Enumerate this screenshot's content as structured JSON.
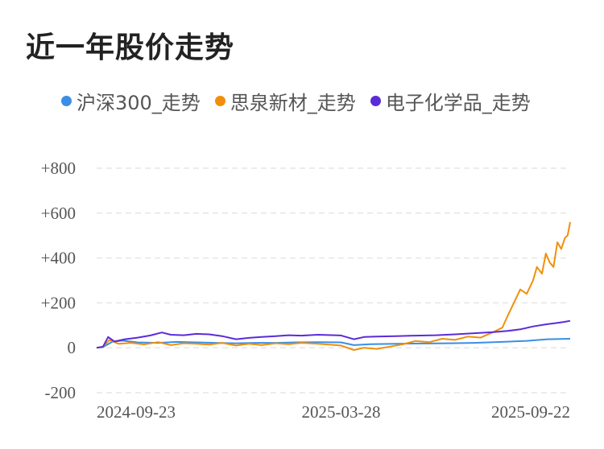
{
  "title": "近一年股价走势",
  "chart_data": {
    "type": "line",
    "title": "近一年股价走势",
    "xlabel": "",
    "ylabel": "",
    "ylim": [
      -200,
      800
    ],
    "y_ticks": [
      "+800",
      "+600",
      "+400",
      "+200",
      "0",
      "-200"
    ],
    "y_tick_values": [
      800,
      600,
      400,
      200,
      0,
      -200
    ],
    "x_ticks": [
      "2024-09-23",
      "2025-03-28",
      "2025-09-22"
    ],
    "x_range": [
      "2024-09-18",
      "2025-09-23"
    ],
    "grid": true,
    "legend_position": "top",
    "series": [
      {
        "name": "沪深300_走势",
        "color": "#3a8ee6",
        "points": [
          [
            "2024-09-18",
            0
          ],
          [
            "2024-09-23",
            3
          ],
          [
            "2024-09-30",
            26
          ],
          [
            "2024-10-08",
            32
          ],
          [
            "2024-10-20",
            24
          ],
          [
            "2024-11-05",
            22
          ],
          [
            "2024-11-20",
            26
          ],
          [
            "2024-12-05",
            24
          ],
          [
            "2024-12-20",
            22
          ],
          [
            "2025-01-05",
            20
          ],
          [
            "2025-01-20",
            22
          ],
          [
            "2025-02-05",
            22
          ],
          [
            "2025-02-20",
            24
          ],
          [
            "2025-03-10",
            25
          ],
          [
            "2025-03-28",
            24
          ],
          [
            "2025-04-07",
            12
          ],
          [
            "2025-04-20",
            16
          ],
          [
            "2025-05-10",
            18
          ],
          [
            "2025-06-01",
            19
          ],
          [
            "2025-06-20",
            20
          ],
          [
            "2025-07-10",
            22
          ],
          [
            "2025-08-01",
            26
          ],
          [
            "2025-08-20",
            31
          ],
          [
            "2025-09-05",
            38
          ],
          [
            "2025-09-23",
            40
          ]
        ]
      },
      {
        "name": "思泉新材_走势",
        "color": "#f0900a",
        "points": [
          [
            "2024-09-18",
            0
          ],
          [
            "2024-09-23",
            5
          ],
          [
            "2024-09-28",
            35
          ],
          [
            "2024-10-05",
            18
          ],
          [
            "2024-10-15",
            22
          ],
          [
            "2024-10-25",
            15
          ],
          [
            "2024-11-05",
            25
          ],
          [
            "2024-11-15",
            12
          ],
          [
            "2024-11-25",
            20
          ],
          [
            "2024-12-05",
            18
          ],
          [
            "2024-12-15",
            14
          ],
          [
            "2024-12-25",
            22
          ],
          [
            "2025-01-05",
            10
          ],
          [
            "2025-01-15",
            18
          ],
          [
            "2025-01-25",
            12
          ],
          [
            "2025-02-05",
            20
          ],
          [
            "2025-02-15",
            16
          ],
          [
            "2025-02-25",
            22
          ],
          [
            "2025-03-10",
            18
          ],
          [
            "2025-03-28",
            10
          ],
          [
            "2025-04-07",
            -10
          ],
          [
            "2025-04-15",
            0
          ],
          [
            "2025-04-25",
            -5
          ],
          [
            "2025-05-05",
            5
          ],
          [
            "2025-05-15",
            15
          ],
          [
            "2025-05-25",
            30
          ],
          [
            "2025-06-05",
            25
          ],
          [
            "2025-06-15",
            40
          ],
          [
            "2025-06-25",
            35
          ],
          [
            "2025-07-05",
            50
          ],
          [
            "2025-07-15",
            45
          ],
          [
            "2025-07-25",
            70
          ],
          [
            "2025-08-01",
            90
          ],
          [
            "2025-08-05",
            140
          ],
          [
            "2025-08-10",
            200
          ],
          [
            "2025-08-15",
            260
          ],
          [
            "2025-08-20",
            240
          ],
          [
            "2025-08-25",
            300
          ],
          [
            "2025-08-28",
            360
          ],
          [
            "2025-09-01",
            330
          ],
          [
            "2025-09-04",
            420
          ],
          [
            "2025-09-07",
            380
          ],
          [
            "2025-09-10",
            360
          ],
          [
            "2025-09-13",
            470
          ],
          [
            "2025-09-16",
            440
          ],
          [
            "2025-09-19",
            490
          ],
          [
            "2025-09-21",
            500
          ],
          [
            "2025-09-23",
            560
          ]
        ]
      },
      {
        "name": "电子化学品_走势",
        "color": "#5b2bd8",
        "points": [
          [
            "2024-09-18",
            0
          ],
          [
            "2024-09-23",
            5
          ],
          [
            "2024-09-27",
            48
          ],
          [
            "2024-10-02",
            28
          ],
          [
            "2024-10-10",
            38
          ],
          [
            "2024-10-20",
            45
          ],
          [
            "2024-10-30",
            55
          ],
          [
            "2024-11-08",
            68
          ],
          [
            "2024-11-15",
            58
          ],
          [
            "2024-11-25",
            56
          ],
          [
            "2024-12-05",
            62
          ],
          [
            "2024-12-15",
            60
          ],
          [
            "2024-12-25",
            52
          ],
          [
            "2025-01-05",
            38
          ],
          [
            "2025-01-15",
            44
          ],
          [
            "2025-01-25",
            48
          ],
          [
            "2025-02-05",
            52
          ],
          [
            "2025-02-15",
            56
          ],
          [
            "2025-02-25",
            54
          ],
          [
            "2025-03-10",
            58
          ],
          [
            "2025-03-28",
            55
          ],
          [
            "2025-04-07",
            38
          ],
          [
            "2025-04-15",
            48
          ],
          [
            "2025-04-25",
            50
          ],
          [
            "2025-05-10",
            52
          ],
          [
            "2025-05-25",
            54
          ],
          [
            "2025-06-10",
            56
          ],
          [
            "2025-06-25",
            60
          ],
          [
            "2025-07-10",
            65
          ],
          [
            "2025-07-25",
            70
          ],
          [
            "2025-08-05",
            75
          ],
          [
            "2025-08-15",
            82
          ],
          [
            "2025-08-25",
            95
          ],
          [
            "2025-09-05",
            105
          ],
          [
            "2025-09-12",
            110
          ],
          [
            "2025-09-18",
            115
          ],
          [
            "2025-09-23",
            120
          ]
        ]
      }
    ]
  }
}
